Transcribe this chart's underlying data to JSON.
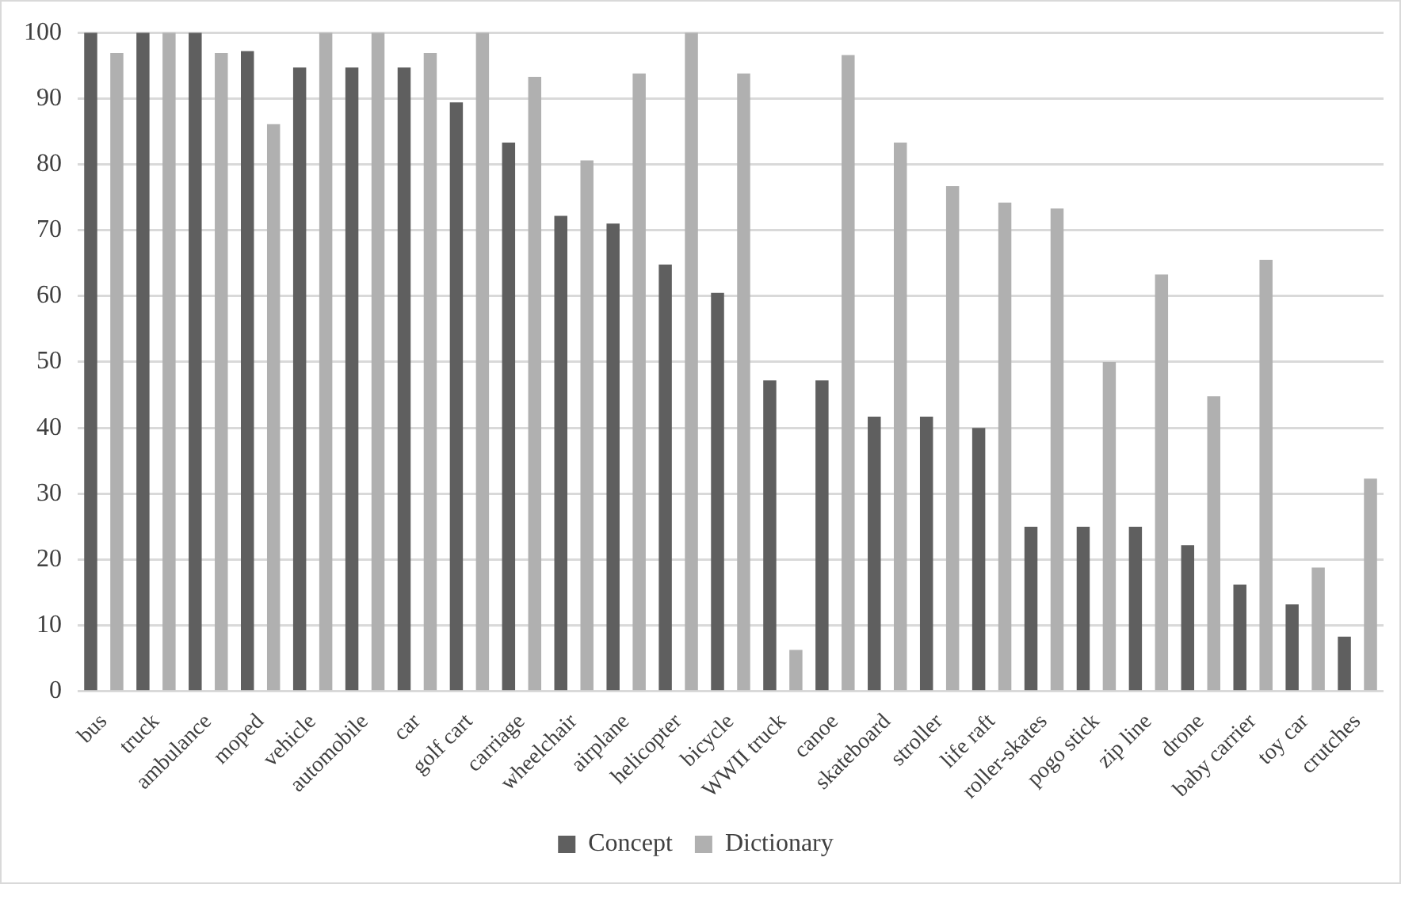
{
  "chart_data": {
    "type": "bar",
    "categories": [
      "bus",
      "truck",
      "ambulance",
      "moped",
      "vehicle",
      "automobile",
      "car",
      "golf cart",
      "carriage",
      "wheelchair",
      "airplane",
      "helicopter",
      "bicycle",
      "WWII truck",
      "canoe",
      "skateboard",
      "stroller",
      "life raft",
      "roller-skates",
      "pogo stick",
      "zip line",
      "drone",
      "baby carrier",
      "toy car",
      "crutches"
    ],
    "series": [
      {
        "name": "Concept",
        "color": "#5f5f5f",
        "values": [
          100,
          100,
          100,
          97.2,
          94.7,
          94.7,
          94.7,
          89.4,
          83.3,
          72.2,
          71,
          64.8,
          60.5,
          47.2,
          47.2,
          41.7,
          41.7,
          40,
          25,
          25,
          25,
          22.2,
          16.2,
          13.2,
          8.3
        ]
      },
      {
        "name": "Dictionary",
        "color": "#b0b0b0",
        "values": [
          96.9,
          100,
          96.9,
          86.1,
          100,
          100,
          96.9,
          100,
          93.3,
          80.6,
          93.8,
          100,
          93.8,
          6.3,
          96.6,
          83.3,
          76.7,
          74.2,
          73.3,
          50,
          63.3,
          44.8,
          65.5,
          18.8,
          32.3
        ]
      }
    ],
    "ylim": [
      0,
      100
    ],
    "yticks": [
      0,
      10,
      20,
      30,
      40,
      50,
      60,
      70,
      80,
      90,
      100
    ],
    "grid": "y",
    "legend": "bottom"
  }
}
